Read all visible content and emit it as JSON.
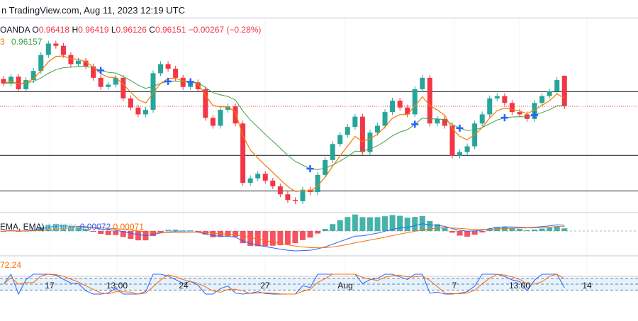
{
  "header": {
    "source": "n TradingView.com, Aug 11, 2023 12:19 UTC"
  },
  "legend": {
    "symbol": "OANDA",
    "open": "0.96418",
    "high": "0.96419",
    "low": "0.96126",
    "close": "0.96151",
    "change": "−0.00267 (−0.28%)",
    "ema_label": "3",
    "ema_value": "0.96157",
    "macd_label": "EMA, EMA)",
    "macd_hist": "0.00001",
    "macd_line": "0.00072",
    "macd_signal": "0.00071",
    "stoch_value": "72.24",
    "o": "O",
    "h": "H",
    "l": "L",
    "c": "C"
  },
  "colors": {
    "up": "#26a69a",
    "down": "#f23645",
    "ema_fast": "#f57c00",
    "ema_slow": "#43a047",
    "macd": "#2962ff",
    "signal": "#ff6d00",
    "marker": "#2962ff",
    "last_price": "#f23645"
  },
  "chart_data": {
    "type": "candlestick",
    "closes": [
      0.9635,
      0.9641,
      0.963,
      0.9638,
      0.9646,
      0.966,
      0.967,
      0.9668,
      0.966,
      0.9652,
      0.9655,
      0.965,
      0.964,
      0.9632,
      0.9634,
      0.964,
      0.9622,
      0.9614,
      0.9608,
      0.9612,
      0.9644,
      0.9652,
      0.9648,
      0.964,
      0.9632,
      0.9636,
      0.963,
      0.9605,
      0.9598,
      0.9612,
      0.9615,
      0.96,
      0.9548,
      0.9552,
      0.9556,
      0.955,
      0.9545,
      0.9538,
      0.9533,
      0.9532,
      0.9542,
      0.954,
      0.9555,
      0.9568,
      0.9582,
      0.959,
      0.9597,
      0.9606,
      0.9575,
      0.9592,
      0.9598,
      0.961,
      0.962,
      0.9614,
      0.9608,
      0.963,
      0.964,
      0.96,
      0.9604,
      0.9598,
      0.9572,
      0.9575,
      0.958,
      0.96,
      0.9608,
      0.9622,
      0.9624,
      0.9618,
      0.961,
      0.9608,
      0.9604,
      0.9618,
      0.9624,
      0.9628,
      0.9638,
      0.9615
    ],
    "last": {
      "open": 0.96418,
      "high": 0.96419,
      "low": 0.96126,
      "close": 0.96151
    },
    "horizontal_levels": [
      0.96279,
      0.95721,
      0.95409
    ],
    "x_tick_labels": [
      "17",
      "13:00",
      "24",
      "27",
      "Aug",
      "7",
      "13:00",
      "14"
    ],
    "ylim": [
      0.9522,
      0.9692
    ],
    "stoch_band": [
      20,
      80
    ]
  }
}
